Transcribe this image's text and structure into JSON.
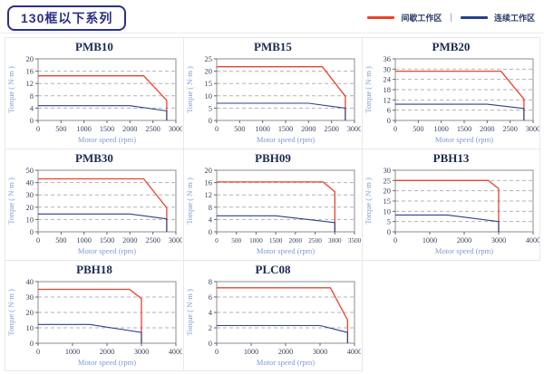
{
  "header": {
    "title": "130框以下系列",
    "legend_separator": "|",
    "legend": [
      {
        "label": "间歇工作区",
        "color": "#e8432c"
      },
      {
        "label": "连续工作区",
        "color": "#27408b"
      }
    ]
  },
  "colors": {
    "accent_navy": "#2b3087",
    "plot_border": "#8c8c8c",
    "gridline": "#b3b3b3",
    "intermittent_line": "#e8432c",
    "continuous_line": "#2e3f8f"
  },
  "chart_data": [
    {
      "id": "pmb10",
      "type": "line",
      "title": "PMB10",
      "xlabel": "Motor speed (rpm)",
      "ylabel": "Torque ( N·m )",
      "xlim": [
        0,
        3000
      ],
      "xticks": [
        0,
        500,
        1000,
        1500,
        2000,
        2500,
        3000
      ],
      "ylim": [
        0,
        20
      ],
      "yticks": [
        0,
        4,
        8,
        12,
        16,
        20
      ],
      "grid": "horizontal-dashed",
      "legend_position": "none",
      "series": [
        {
          "name": "间歇工作区",
          "color": "#e8432c",
          "points": [
            [
              0,
              14.5
            ],
            [
              2300,
              14.5
            ],
            [
              2800,
              6.5
            ],
            [
              2800,
              0
            ]
          ]
        },
        {
          "name": "连续工作区",
          "color": "#2e3f8f",
          "points": [
            [
              0,
              4.8
            ],
            [
              2000,
              4.8
            ],
            [
              2800,
              3.1
            ],
            [
              2800,
              0
            ]
          ]
        }
      ]
    },
    {
      "id": "pmb15",
      "type": "line",
      "title": "PMB15",
      "xlabel": "Motor speed (rpm)",
      "ylabel": "Torque ( N·m )",
      "xlim": [
        0,
        3000
      ],
      "xticks": [
        0,
        500,
        1000,
        1500,
        2000,
        2500,
        3000
      ],
      "ylim": [
        0,
        25
      ],
      "yticks": [
        0,
        5,
        10,
        15,
        20,
        25
      ],
      "grid": "horizontal-dashed",
      "legend_position": "none",
      "series": [
        {
          "name": "间歇工作区",
          "color": "#e8432c",
          "points": [
            [
              0,
              21.8
            ],
            [
              2300,
              21.8
            ],
            [
              2800,
              9.8
            ],
            [
              2800,
              0
            ]
          ]
        },
        {
          "name": "连续工作区",
          "color": "#2e3f8f",
          "points": [
            [
              0,
              7
            ],
            [
              2000,
              7
            ],
            [
              2800,
              5
            ],
            [
              2800,
              0
            ]
          ]
        }
      ]
    },
    {
      "id": "pmb20",
      "type": "line",
      "title": "PMB20",
      "xlabel": "Motor speed (rpm)",
      "ylabel": "Torque ( N·m )",
      "xlim": [
        0,
        3000
      ],
      "xticks": [
        0,
        500,
        1000,
        1500,
        2000,
        2500,
        3000
      ],
      "ylim": [
        0,
        36
      ],
      "yticks": [
        0,
        6,
        12,
        18,
        24,
        30,
        36
      ],
      "grid": "horizontal-dashed",
      "legend_position": "none",
      "series": [
        {
          "name": "间歇工作区",
          "color": "#e8432c",
          "points": [
            [
              0,
              28.8
            ],
            [
              2300,
              28.8
            ],
            [
              2800,
              12.5
            ],
            [
              2800,
              0
            ]
          ]
        },
        {
          "name": "连续工作区",
          "color": "#2e3f8f",
          "points": [
            [
              0,
              9.5
            ],
            [
              2000,
              9.5
            ],
            [
              2800,
              7
            ],
            [
              2800,
              0
            ]
          ]
        }
      ]
    },
    {
      "id": "pmb30",
      "type": "line",
      "title": "PMB30",
      "xlabel": "Motor speed (rpm)",
      "ylabel": "Torque ( N·m )",
      "xlim": [
        0,
        3000
      ],
      "xticks": [
        0,
        500,
        1000,
        1500,
        2000,
        2500,
        3000
      ],
      "ylim": [
        0,
        50
      ],
      "yticks": [
        0,
        10,
        20,
        30,
        40,
        50
      ],
      "grid": "horizontal-dashed",
      "legend_position": "none",
      "series": [
        {
          "name": "间歇工作区",
          "color": "#e8432c",
          "points": [
            [
              0,
              43
            ],
            [
              2300,
              43
            ],
            [
              2800,
              19.5
            ],
            [
              2800,
              0
            ]
          ]
        },
        {
          "name": "连续工作区",
          "color": "#2e3f8f",
          "points": [
            [
              0,
              14.5
            ],
            [
              2000,
              14.5
            ],
            [
              2800,
              10.5
            ],
            [
              2800,
              0
            ]
          ]
        }
      ]
    },
    {
      "id": "pbh09",
      "type": "line",
      "title": "PBH09",
      "xlabel": "Motor speed (rpm)",
      "ylabel": "Torque ( N·m )",
      "xlim": [
        0,
        3500
      ],
      "xticks": [
        0,
        500,
        1000,
        1500,
        2000,
        2500,
        3000,
        3500
      ],
      "ylim": [
        0,
        20
      ],
      "yticks": [
        0,
        4,
        8,
        12,
        16,
        20
      ],
      "grid": "horizontal-dashed",
      "legend_position": "none",
      "series": [
        {
          "name": "间歇工作区",
          "color": "#e8432c",
          "points": [
            [
              0,
              16.2
            ],
            [
              2700,
              16.2
            ],
            [
              3000,
              13
            ],
            [
              3000,
              0
            ]
          ]
        },
        {
          "name": "连续工作区",
          "color": "#2e3f8f",
          "points": [
            [
              0,
              5.2
            ],
            [
              1500,
              5.2
            ],
            [
              3000,
              3
            ],
            [
              3000,
              0
            ]
          ]
        }
      ]
    },
    {
      "id": "pbh13",
      "type": "line",
      "title": "PBH13",
      "xlabel": "Motor speed (rpm)",
      "ylabel": "Torque ( N·m )",
      "xlim": [
        0,
        4000
      ],
      "xticks": [
        0,
        1000,
        2000,
        3000,
        4000
      ],
      "ylim": [
        0,
        30
      ],
      "yticks": [
        0,
        5,
        10,
        15,
        20,
        25,
        30
      ],
      "grid": "horizontal-dashed",
      "legend_position": "none",
      "series": [
        {
          "name": "间歇工作区",
          "color": "#e8432c",
          "points": [
            [
              0,
              25
            ],
            [
              2700,
              25
            ],
            [
              3000,
              21
            ],
            [
              3000,
              0
            ]
          ]
        },
        {
          "name": "连续工作区",
          "color": "#2e3f8f",
          "points": [
            [
              0,
              8.2
            ],
            [
              1500,
              8.2
            ],
            [
              3000,
              5
            ],
            [
              3000,
              0
            ]
          ]
        }
      ]
    },
    {
      "id": "pbh18",
      "type": "line",
      "title": "PBH18",
      "xlabel": "Motor speed (rpm)",
      "ylabel": "Torque ( N·m )",
      "xlim": [
        0,
        4000
      ],
      "xticks": [
        0,
        1000,
        2000,
        3000,
        4000
      ],
      "ylim": [
        0,
        40
      ],
      "yticks": [
        0,
        10,
        20,
        30,
        40
      ],
      "grid": "horizontal-dashed",
      "legend_position": "none",
      "series": [
        {
          "name": "间歇工作区",
          "color": "#e8432c",
          "points": [
            [
              0,
              35
            ],
            [
              2650,
              35
            ],
            [
              3000,
              29
            ],
            [
              3000,
              0
            ]
          ]
        },
        {
          "name": "连续工作区",
          "color": "#2e3f8f",
          "points": [
            [
              0,
              12.2
            ],
            [
              1500,
              12.2
            ],
            [
              3000,
              7
            ],
            [
              3000,
              0
            ]
          ]
        }
      ]
    },
    {
      "id": "plc08",
      "type": "line",
      "title": "PLC08",
      "xlabel": "Motor speed (rpm)",
      "ylabel": "Torque ( N·m )",
      "xlim": [
        0,
        4000
      ],
      "xticks": [
        0,
        1000,
        2000,
        3000,
        4000
      ],
      "ylim": [
        0,
        8
      ],
      "yticks": [
        0,
        2,
        4,
        6,
        8
      ],
      "grid": "horizontal-dashed",
      "legend_position": "none",
      "series": [
        {
          "name": "间歇工作区",
          "color": "#e8432c",
          "points": [
            [
              0,
              7.2
            ],
            [
              3300,
              7.2
            ],
            [
              3800,
              3
            ],
            [
              3800,
              0
            ]
          ]
        },
        {
          "name": "连续工作区",
          "color": "#2e3f8f",
          "points": [
            [
              0,
              2.3
            ],
            [
              3000,
              2.3
            ],
            [
              3800,
              1.4
            ],
            [
              3800,
              0
            ]
          ]
        }
      ]
    }
  ]
}
